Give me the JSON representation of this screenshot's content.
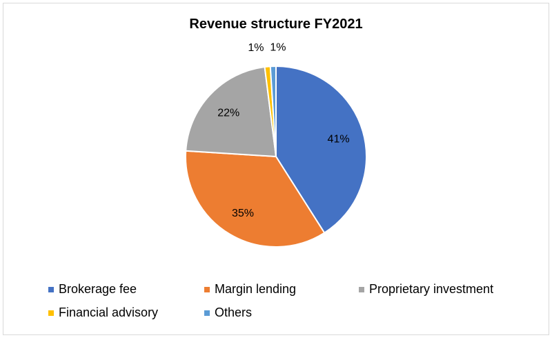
{
  "chart_data": {
    "type": "pie",
    "title": "Revenue structure FY2021",
    "series": [
      {
        "name": "Brokerage fee",
        "value": 41,
        "label": "41%",
        "color": "#4472C4"
      },
      {
        "name": "Margin lending",
        "value": 35,
        "label": "35%",
        "color": "#ED7D31"
      },
      {
        "name": "Proprietary investment",
        "value": 22,
        "label": "22%",
        "color": "#A5A5A5"
      },
      {
        "name": "Financial advisory",
        "value": 1,
        "label": "1%",
        "color": "#FFC000"
      },
      {
        "name": "Others",
        "value": 1,
        "label": "1%",
        "color": "#5B9BD5"
      }
    ],
    "legend_position": "bottom",
    "start_angle": "top, clockwise"
  }
}
